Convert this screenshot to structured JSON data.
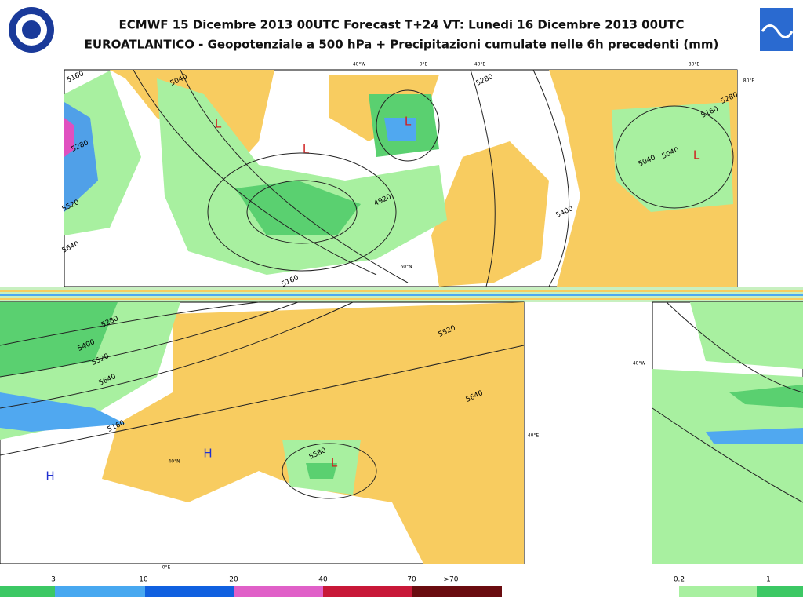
{
  "header": {
    "title": "ECMWF 15 Dicembre 2013 00UTC Forecast T+24 VT: Lunedi 16 Dicembre 2013 00UTC",
    "subtitle": "EUROATLANTICO - Geopotenziale a 500 hPa + Precipitazioni cumulate nelle 6h precedenti (mm)"
  },
  "map": {
    "graticule_labels": [
      "40°W",
      "0°E",
      "40°E",
      "80°E",
      "80°E",
      "60°N",
      "40°N",
      "40°E",
      "0°E",
      "40°W"
    ],
    "contour_labels": [
      "5160",
      "5040",
      "5280",
      "5520",
      "5640",
      "5280",
      "4920",
      "5160",
      "5160",
      "5280",
      "5040",
      "5040",
      "5400",
      "5280",
      "5400",
      "5520",
      "5640",
      "5160",
      "5520",
      "5640",
      "5580"
    ],
    "lows": [
      "L",
      "L",
      "L",
      "L",
      "L"
    ],
    "highs": [
      "H",
      "H"
    ]
  },
  "legend": {
    "left_labels": [
      "3",
      "10",
      "20",
      "40",
      "70",
      ">70"
    ],
    "right_labels": [
      "0.2",
      "1"
    ]
  }
}
